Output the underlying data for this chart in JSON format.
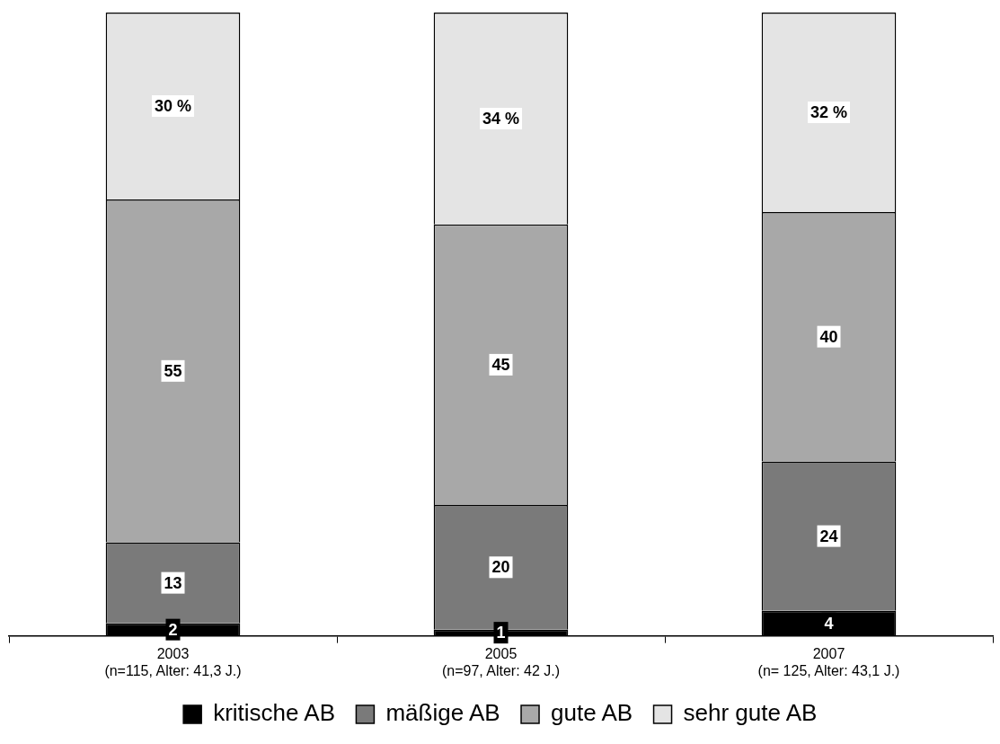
{
  "chart_data": {
    "type": "bar",
    "stacked": true,
    "categories": [
      "2003\n(n=115, Alter: 41,3 J.)",
      "2005\n(n=97, Alter: 42 J.)",
      "2007\n(n= 125, Alter: 43,1 J.)"
    ],
    "ylim": [
      0,
      100
    ],
    "tick_labels": "x",
    "grid": false,
    "legend": "bottom",
    "series": [
      {
        "name": "kritische AB",
        "color": "#000000",
        "values": [
          2,
          1,
          4
        ],
        "value_labels": [
          "2",
          "1",
          "4"
        ]
      },
      {
        "name": "mäßige AB",
        "color": "#7a7a7a",
        "values": [
          13,
          20,
          24
        ],
        "value_labels": [
          "13",
          "20",
          "24"
        ]
      },
      {
        "name": "gute AB",
        "color": "#a8a8a8",
        "values": [
          55,
          45,
          40
        ],
        "value_labels": [
          "55",
          "45",
          "40"
        ]
      },
      {
        "name": "sehr gute AB",
        "color": "#e4e4e4",
        "values": [
          30,
          34,
          32
        ],
        "value_labels": [
          "30 %",
          "34 %",
          "32 %"
        ]
      }
    ]
  }
}
